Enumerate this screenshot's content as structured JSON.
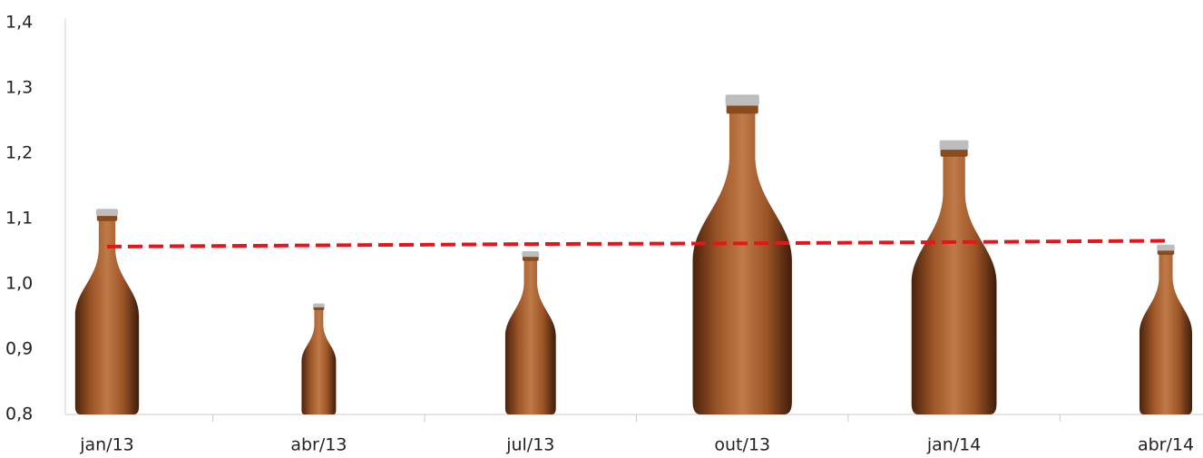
{
  "chart_data": {
    "type": "pictograph",
    "categories": [
      "jan/13",
      "abr/13",
      "jul/13",
      "out/13",
      "jan/14",
      "abr/14"
    ],
    "values": [
      1.115,
      0.97,
      1.05,
      1.29,
      1.22,
      1.06
    ],
    "color": "#8a4a1c",
    "trend": {
      "color": "#e8141a",
      "values": [
        1.057,
        1.059,
        1.061,
        1.062,
        1.064,
        1.066
      ]
    },
    "ylim": [
      0.8,
      1.4
    ],
    "yticks": [
      {
        "value": 0.8,
        "label": "0,8"
      },
      {
        "value": 0.9,
        "label": "0,9"
      },
      {
        "value": 1.0,
        "label": "1,0"
      },
      {
        "value": 1.1,
        "label": "1,1"
      },
      {
        "value": 1.2,
        "label": "1,2"
      },
      {
        "value": 1.3,
        "label": "1,3"
      },
      {
        "value": 1.4,
        "label": "1,4"
      }
    ]
  }
}
